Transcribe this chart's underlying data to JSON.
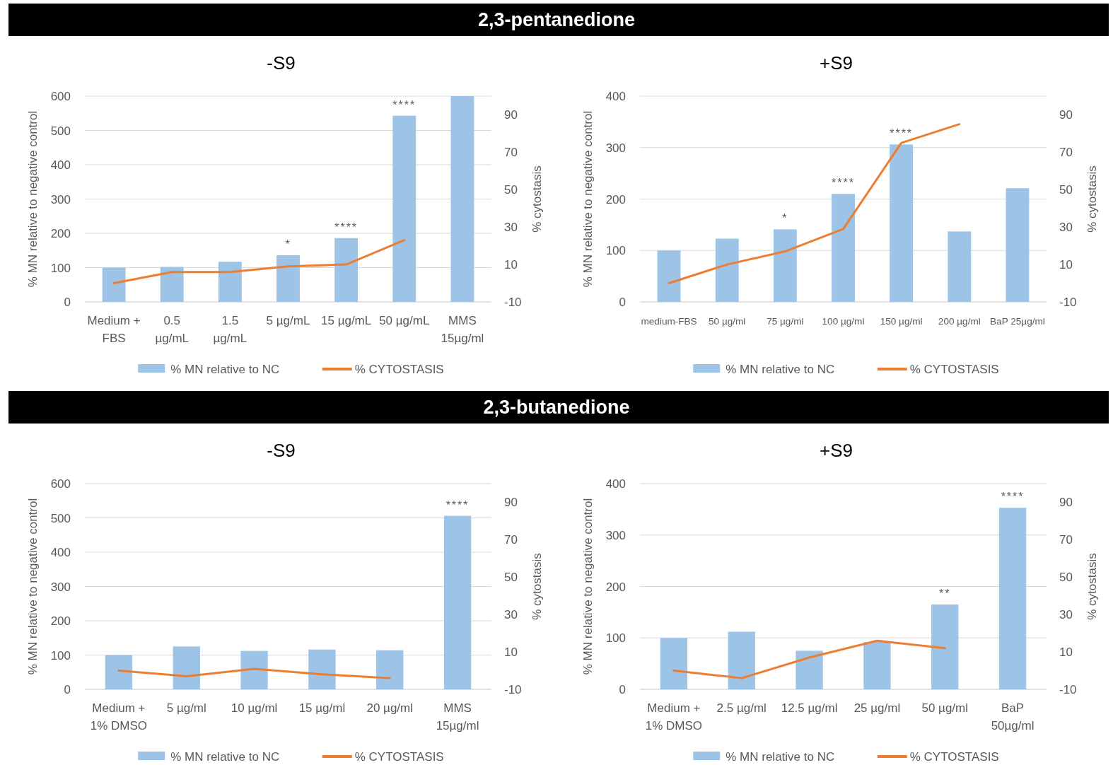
{
  "chart_data": [
    {
      "type": "bar",
      "title": "-S9",
      "ylabel": "% MN relative to negative control",
      "y2label": "% cytostasis",
      "categories": [
        "Medium + FBS",
        "0.5 µg/mL",
        "1.5 µg/mL",
        "5 µg/mL",
        "15 µg/mL",
        "50 µg/mL",
        "MMS 15µg/ml"
      ],
      "series": [
        {
          "name": "% MN relative to NC",
          "color": "#9dc3e6",
          "values": [
            100,
            102,
            117,
            136,
            186,
            543,
            600
          ]
        },
        {
          "name": "% CYTOSTASIS",
          "type": "line",
          "axis": "y2",
          "color": "#ed7d31",
          "values": [
            0,
            6,
            6,
            9,
            10,
            23,
            null
          ]
        }
      ],
      "ylim": [
        0,
        600
      ],
      "yticks": [
        0,
        100,
        200,
        300,
        400,
        500,
        600
      ],
      "y2lim": [
        -10,
        100
      ],
      "y2ticks": [
        -10,
        10,
        30,
        50,
        70,
        90
      ],
      "grid": "y",
      "legend": "bottom",
      "marker": "none",
      "annotations": [
        "2,3-pentanedione",
        {
          "text": "*",
          "x": "5 µg/mL",
          "y": 136
        },
        {
          "text": "****",
          "x": "15 µg/mL",
          "y": 186
        },
        {
          "text": "****",
          "x": "50 µg/mL",
          "y": 543
        }
      ]
    },
    {
      "type": "bar",
      "title": "+S9",
      "ylabel": "% MN relative to negative control",
      "y2label": "% cytostasis",
      "categories": [
        "medium-FBS",
        "50 µg/ml",
        "75 µg/ml",
        "100 µg/ml",
        "150 µg/ml",
        "200 µg/ml",
        "BaP 25µg/ml"
      ],
      "series": [
        {
          "name": "% MN relative to NC",
          "color": "#9dc3e6",
          "values": [
            100,
            123,
            141,
            210,
            306,
            137,
            221
          ]
        },
        {
          "name": "% CYTOSTASIS",
          "type": "line",
          "axis": "y2",
          "color": "#ed7d31",
          "values": [
            0,
            10,
            17,
            29,
            75,
            85,
            null
          ]
        }
      ],
      "ylim": [
        0,
        400
      ],
      "yticks": [
        0,
        100,
        200,
        300,
        400
      ],
      "y2lim": [
        -10,
        100
      ],
      "y2ticks": [
        -10,
        10,
        30,
        50,
        70,
        90
      ],
      "grid": "y",
      "legend": "bottom",
      "marker": "none",
      "annotations": [
        {
          "text": "*",
          "x": "75 µg/ml",
          "y": 141
        },
        {
          "text": "****",
          "x": "100 µg/ml",
          "y": 210
        },
        {
          "text": "****",
          "x": "150 µg/ml",
          "y": 306
        }
      ]
    },
    {
      "type": "bar",
      "title": "-S9",
      "ylabel": "% MN relative to negative control",
      "y2label": "% cytostasis",
      "categories": [
        "Medium + 1% DMSO",
        "5 µg/ml",
        "10 µg/ml",
        "15 µg/ml",
        "20 µg/ml",
        "MMS 15µg/ml"
      ],
      "series": [
        {
          "name": "% MN relative to NC",
          "color": "#9dc3e6",
          "values": [
            100,
            125,
            112,
            116,
            114,
            506
          ]
        },
        {
          "name": "% CYTOSTASIS",
          "type": "line",
          "axis": "y2",
          "color": "#ed7d31",
          "values": [
            0,
            -3,
            1,
            -2,
            -4,
            null
          ]
        }
      ],
      "ylim": [
        0,
        600
      ],
      "yticks": [
        0,
        100,
        200,
        300,
        400,
        500,
        600
      ],
      "y2lim": [
        -10,
        100
      ],
      "y2ticks": [
        -10,
        10,
        30,
        50,
        70,
        90
      ],
      "grid": "y",
      "legend": "bottom",
      "marker": "none",
      "annotations": [
        "2,3-butanedione",
        {
          "text": "****",
          "x": "MMS 15µg/ml",
          "y": 506
        }
      ]
    },
    {
      "type": "bar",
      "title": "+S9",
      "ylabel": "% MN relative to negative control",
      "y2label": "% cytostasis",
      "categories": [
        "Medium + 1% DMSO",
        "2.5 µg/ml",
        "12.5 µg/ml",
        "25 µg/ml",
        "50 µg/ml",
        "BaP 50µg/ml"
      ],
      "series": [
        {
          "name": "% MN relative to NC",
          "color": "#9dc3e6",
          "values": [
            100,
            112,
            75,
            92,
            165,
            353
          ]
        },
        {
          "name": "% CYTOSTASIS",
          "type": "line",
          "axis": "y2",
          "color": "#ed7d31",
          "values": [
            0,
            -4,
            7,
            16,
            12,
            null
          ]
        }
      ],
      "ylim": [
        0,
        400
      ],
      "yticks": [
        0,
        100,
        200,
        300,
        400
      ],
      "y2lim": [
        -10,
        100
      ],
      "y2ticks": [
        -10,
        10,
        30,
        50,
        70,
        90
      ],
      "grid": "y",
      "legend": "bottom",
      "marker": "none",
      "annotations": [
        {
          "text": "**",
          "x": "50 µg/ml",
          "y": 165
        },
        {
          "text": "****",
          "x": "BaP 50µg/ml",
          "y": 353
        }
      ]
    }
  ]
}
